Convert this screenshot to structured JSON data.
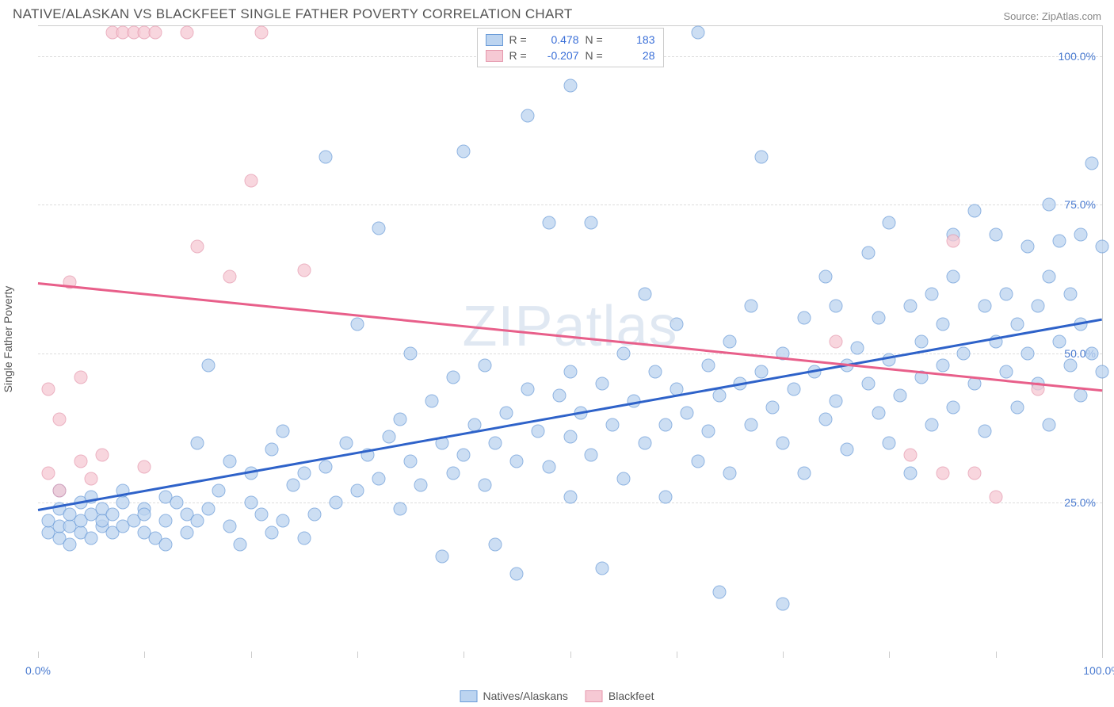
{
  "title": "NATIVE/ALASKAN VS BLACKFEET SINGLE FATHER POVERTY CORRELATION CHART",
  "source_label": "Source: ZipAtlas.com",
  "watermark": "ZIPatlas",
  "chart": {
    "type": "scatter",
    "background_color": "#ffffff",
    "grid_color": "#dddddd",
    "axis_color": "#cccccc",
    "tick_label_color": "#4a7bd0",
    "axis_title_color": "#555555",
    "y_axis_title": "Single Father Poverty",
    "xlim": [
      0,
      100
    ],
    "ylim": [
      0,
      105
    ],
    "y_ticks": [
      {
        "v": 25,
        "label": "25.0%"
      },
      {
        "v": 50,
        "label": "50.0%"
      },
      {
        "v": 75,
        "label": "75.0%"
      },
      {
        "v": 100,
        "label": "100.0%"
      }
    ],
    "x_ticks_minor": [
      0,
      10,
      20,
      30,
      40,
      50,
      60,
      70,
      80,
      90,
      100
    ],
    "x_labels": [
      {
        "v": 0,
        "label": "0.0%"
      },
      {
        "v": 100,
        "label": "100.0%"
      }
    ],
    "marker_radius": 8.5,
    "marker_opacity": 0.75,
    "series": [
      {
        "name": "Natives/Alaskans",
        "fill_color": "#bcd4f0",
        "stroke_color": "#6a9bd8",
        "trend_color": "#2e62c9",
        "r_value": "0.478",
        "n_value": "183",
        "trend": {
          "x1": 0,
          "y1": 24,
          "x2": 100,
          "y2": 56
        },
        "points": [
          [
            1,
            20
          ],
          [
            1,
            22
          ],
          [
            2,
            19
          ],
          [
            2,
            21
          ],
          [
            2,
            24
          ],
          [
            2,
            27
          ],
          [
            3,
            18
          ],
          [
            3,
            21
          ],
          [
            3,
            23
          ],
          [
            4,
            20
          ],
          [
            4,
            22
          ],
          [
            4,
            25
          ],
          [
            5,
            19
          ],
          [
            5,
            23
          ],
          [
            5,
            26
          ],
          [
            6,
            21
          ],
          [
            6,
            24
          ],
          [
            6,
            22
          ],
          [
            7,
            20
          ],
          [
            7,
            23
          ],
          [
            8,
            21
          ],
          [
            8,
            25
          ],
          [
            8,
            27
          ],
          [
            9,
            22
          ],
          [
            10,
            20
          ],
          [
            10,
            24
          ],
          [
            10,
            23
          ],
          [
            11,
            19
          ],
          [
            12,
            22
          ],
          [
            12,
            26
          ],
          [
            12,
            18
          ],
          [
            13,
            25
          ],
          [
            14,
            20
          ],
          [
            14,
            23
          ],
          [
            15,
            35
          ],
          [
            15,
            22
          ],
          [
            16,
            24
          ],
          [
            16,
            48
          ],
          [
            17,
            27
          ],
          [
            18,
            21
          ],
          [
            18,
            32
          ],
          [
            19,
            18
          ],
          [
            20,
            25
          ],
          [
            20,
            30
          ],
          [
            21,
            23
          ],
          [
            22,
            20
          ],
          [
            22,
            34
          ],
          [
            23,
            37
          ],
          [
            23,
            22
          ],
          [
            24,
            28
          ],
          [
            25,
            30
          ],
          [
            25,
            19
          ],
          [
            26,
            23
          ],
          [
            27,
            31
          ],
          [
            27,
            83
          ],
          [
            28,
            25
          ],
          [
            29,
            35
          ],
          [
            30,
            27
          ],
          [
            30,
            55
          ],
          [
            31,
            33
          ],
          [
            32,
            29
          ],
          [
            32,
            71
          ],
          [
            33,
            36
          ],
          [
            34,
            39
          ],
          [
            34,
            24
          ],
          [
            35,
            32
          ],
          [
            35,
            50
          ],
          [
            36,
            28
          ],
          [
            37,
            42
          ],
          [
            38,
            35
          ],
          [
            38,
            16
          ],
          [
            39,
            46
          ],
          [
            39,
            30
          ],
          [
            40,
            33
          ],
          [
            40,
            84
          ],
          [
            41,
            38
          ],
          [
            42,
            28
          ],
          [
            42,
            48
          ],
          [
            43,
            35
          ],
          [
            43,
            18
          ],
          [
            44,
            40
          ],
          [
            45,
            32
          ],
          [
            45,
            13
          ],
          [
            46,
            44
          ],
          [
            46,
            90
          ],
          [
            47,
            37
          ],
          [
            48,
            31
          ],
          [
            48,
            72
          ],
          [
            49,
            43
          ],
          [
            50,
            36
          ],
          [
            50,
            47
          ],
          [
            50,
            26
          ],
          [
            50,
            95
          ],
          [
            51,
            40
          ],
          [
            52,
            33
          ],
          [
            52,
            72
          ],
          [
            53,
            45
          ],
          [
            53,
            14
          ],
          [
            54,
            38
          ],
          [
            55,
            29
          ],
          [
            55,
            50
          ],
          [
            56,
            42
          ],
          [
            57,
            35
          ],
          [
            57,
            60
          ],
          [
            58,
            47
          ],
          [
            59,
            38
          ],
          [
            59,
            26
          ],
          [
            60,
            44
          ],
          [
            60,
            55
          ],
          [
            61,
            40
          ],
          [
            62,
            32
          ],
          [
            62,
            104
          ],
          [
            63,
            48
          ],
          [
            63,
            37
          ],
          [
            64,
            10
          ],
          [
            64,
            43
          ],
          [
            65,
            52
          ],
          [
            65,
            30
          ],
          [
            66,
            45
          ],
          [
            67,
            38
          ],
          [
            67,
            58
          ],
          [
            68,
            47
          ],
          [
            68,
            83
          ],
          [
            69,
            41
          ],
          [
            70,
            50
          ],
          [
            70,
            8
          ],
          [
            70,
            35
          ],
          [
            71,
            44
          ],
          [
            72,
            56
          ],
          [
            72,
            30
          ],
          [
            73,
            47
          ],
          [
            74,
            63
          ],
          [
            74,
            39
          ],
          [
            75,
            42
          ],
          [
            75,
            58
          ],
          [
            76,
            48
          ],
          [
            76,
            34
          ],
          [
            77,
            51
          ],
          [
            78,
            45
          ],
          [
            78,
            67
          ],
          [
            79,
            40
          ],
          [
            79,
            56
          ],
          [
            80,
            49
          ],
          [
            80,
            35
          ],
          [
            80,
            72
          ],
          [
            81,
            43
          ],
          [
            82,
            58
          ],
          [
            82,
            30
          ],
          [
            83,
            52
          ],
          [
            83,
            46
          ],
          [
            84,
            60
          ],
          [
            84,
            38
          ],
          [
            85,
            55
          ],
          [
            85,
            48
          ],
          [
            86,
            41
          ],
          [
            86,
            63
          ],
          [
            86,
            70
          ],
          [
            87,
            50
          ],
          [
            88,
            45
          ],
          [
            88,
            74
          ],
          [
            89,
            58
          ],
          [
            89,
            37
          ],
          [
            90,
            70
          ],
          [
            90,
            52
          ],
          [
            91,
            47
          ],
          [
            91,
            60
          ],
          [
            92,
            55
          ],
          [
            92,
            41
          ],
          [
            93,
            68
          ],
          [
            93,
            50
          ],
          [
            94,
            58
          ],
          [
            94,
            45
          ],
          [
            95,
            38
          ],
          [
            95,
            63
          ],
          [
            95,
            75
          ],
          [
            96,
            52
          ],
          [
            96,
            69
          ],
          [
            97,
            48
          ],
          [
            97,
            60
          ],
          [
            98,
            55
          ],
          [
            98,
            70
          ],
          [
            98,
            43
          ],
          [
            99,
            82
          ],
          [
            99,
            50
          ],
          [
            100,
            68
          ],
          [
            100,
            47
          ]
        ]
      },
      {
        "name": "Blackfeet",
        "fill_color": "#f6c9d4",
        "stroke_color": "#e598ad",
        "trend_color": "#e85f8a",
        "r_value": "-0.207",
        "n_value": "28",
        "trend": {
          "x1": 0,
          "y1": 62,
          "x2": 100,
          "y2": 44
        },
        "points": [
          [
            1,
            44
          ],
          [
            1,
            30
          ],
          [
            2,
            27
          ],
          [
            2,
            39
          ],
          [
            3,
            62
          ],
          [
            4,
            32
          ],
          [
            4,
            46
          ],
          [
            5,
            29
          ],
          [
            6,
            33
          ],
          [
            7,
            104
          ],
          [
            8,
            104
          ],
          [
            9,
            104
          ],
          [
            10,
            104
          ],
          [
            10,
            31
          ],
          [
            11,
            104
          ],
          [
            14,
            104
          ],
          [
            15,
            68
          ],
          [
            18,
            63
          ],
          [
            20,
            79
          ],
          [
            21,
            104
          ],
          [
            25,
            64
          ],
          [
            75,
            52
          ],
          [
            82,
            33
          ],
          [
            85,
            30
          ],
          [
            86,
            69
          ],
          [
            88,
            30
          ],
          [
            90,
            26
          ],
          [
            94,
            44
          ]
        ]
      }
    ],
    "legend_top_labels": {
      "r": "R =",
      "n": "N ="
    }
  }
}
